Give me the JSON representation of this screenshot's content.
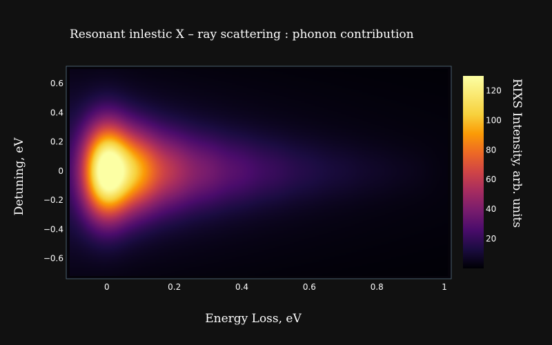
{
  "chart_data": {
    "type": "heatmap",
    "title": "Resonant inlestic X – ray scattering :  phonon contribution",
    "xlabel": "Energy Loss,  eV",
    "ylabel": "Detuning,  eV",
    "colorbar_label": "RIXS Intensity,  arb.  units",
    "colorscale": "inferno",
    "x_range": [
      -0.11,
      1.01
    ],
    "y_range": [
      -0.72,
      0.7
    ],
    "z_range": [
      0,
      130
    ],
    "x_ticks": [
      {
        "value": 0,
        "label": "0"
      },
      {
        "value": 0.2,
        "label": "0.2"
      },
      {
        "value": 0.4,
        "label": "0.4"
      },
      {
        "value": 0.6,
        "label": "0.6"
      },
      {
        "value": 0.8,
        "label": "0.8"
      },
      {
        "value": 1,
        "label": "1"
      }
    ],
    "y_ticks": [
      {
        "value": 0.6,
        "label": "0.6"
      },
      {
        "value": 0.4,
        "label": "0.4"
      },
      {
        "value": 0.2,
        "label": "0.2"
      },
      {
        "value": 0,
        "label": "0"
      },
      {
        "value": -0.2,
        "label": "−0.2"
      },
      {
        "value": -0.4,
        "label": "−0.4"
      },
      {
        "value": -0.6,
        "label": "−0.6"
      }
    ],
    "colorbar_ticks": [
      {
        "value": 120,
        "label": "120"
      },
      {
        "value": 100,
        "label": "100"
      },
      {
        "value": 80,
        "label": "80"
      },
      {
        "value": 60,
        "label": "60"
      },
      {
        "value": 40,
        "label": "40"
      },
      {
        "value": 20,
        "label": "20"
      }
    ],
    "peaks": [
      {
        "energy_loss": 0.0,
        "peak_intensity": 130,
        "detuning_width": 0.22
      },
      {
        "energy_loss": 0.1,
        "peak_intensity": 64,
        "detuning_width": 0.2
      },
      {
        "energy_loss": 0.2,
        "peak_intensity": 36,
        "detuning_width": 0.19
      },
      {
        "energy_loss": 0.3,
        "peak_intensity": 24,
        "detuning_width": 0.18
      },
      {
        "energy_loss": 0.4,
        "peak_intensity": 17,
        "detuning_width": 0.17
      },
      {
        "energy_loss": 0.5,
        "peak_intensity": 12,
        "detuning_width": 0.16
      },
      {
        "energy_loss": 0.6,
        "peak_intensity": 8,
        "detuning_width": 0.15
      },
      {
        "energy_loss": 0.7,
        "peak_intensity": 5.5,
        "detuning_width": 0.14
      },
      {
        "energy_loss": 0.8,
        "peak_intensity": 3.5,
        "detuning_width": 0.13
      },
      {
        "energy_loss": 0.9,
        "peak_intensity": 2,
        "detuning_width": 0.12
      }
    ],
    "peak_energy_width": 0.05,
    "background_intensity": 12
  }
}
